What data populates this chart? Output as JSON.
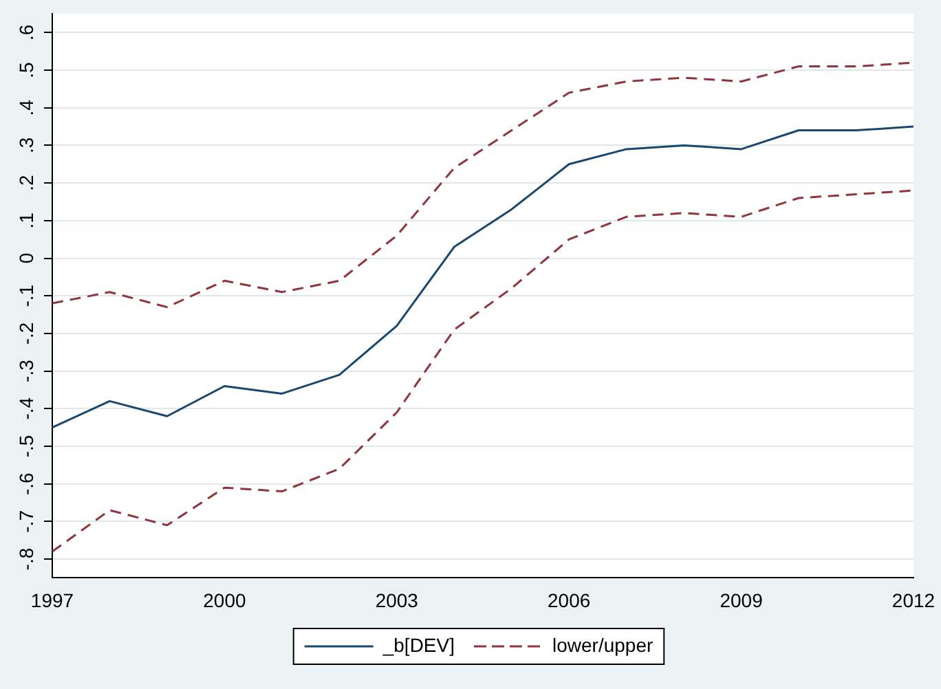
{
  "chart_data": {
    "type": "line",
    "x": [
      1997,
      1998,
      1999,
      2000,
      2001,
      2002,
      2003,
      2004,
      2005,
      2006,
      2007,
      2008,
      2009,
      2010,
      2011,
      2012
    ],
    "series": [
      {
        "name": "_b[DEV]",
        "color": "#1a476f",
        "line_style": "solid",
        "values": [
          -0.45,
          -0.38,
          -0.42,
          -0.34,
          -0.36,
          -0.31,
          -0.18,
          0.03,
          0.13,
          0.25,
          0.29,
          0.3,
          0.29,
          0.34,
          0.34,
          0.35
        ]
      },
      {
        "name": "lower/upper",
        "color": "#90353b",
        "line_style": "dashed",
        "values": [
          -0.78,
          -0.67,
          -0.71,
          -0.61,
          -0.62,
          -0.56,
          -0.41,
          -0.19,
          -0.08,
          0.05,
          0.11,
          0.12,
          0.11,
          0.16,
          0.17,
          0.18
        ]
      },
      {
        "color": "#90353b",
        "line_style": "dashed",
        "values": [
          -0.12,
          -0.09,
          -0.13,
          -0.06,
          -0.09,
          -0.06,
          0.06,
          0.24,
          0.34,
          0.44,
          0.47,
          0.48,
          0.47,
          0.51,
          0.51,
          0.52
        ]
      }
    ],
    "xlim": [
      1997,
      2012
    ],
    "xticks": [
      1997,
      2000,
      2003,
      2006,
      2009,
      2012
    ],
    "ylim": [
      -0.85,
      0.65
    ],
    "yticks": [
      {
        "value": -0.8,
        "label": "-.8"
      },
      {
        "value": -0.7,
        "label": "-.7"
      },
      {
        "value": -0.6,
        "label": "-.6"
      },
      {
        "value": -0.5,
        "label": "-.5"
      },
      {
        "value": -0.4,
        "label": "-.4"
      },
      {
        "value": -0.3,
        "label": "-.3"
      },
      {
        "value": -0.2,
        "label": "-.2"
      },
      {
        "value": -0.1,
        "label": "-.1"
      },
      {
        "value": 0,
        "label": "0"
      },
      {
        "value": 0.1,
        "label": ".1"
      },
      {
        "value": 0.2,
        "label": ".2"
      },
      {
        "value": 0.3,
        "label": ".3"
      },
      {
        "value": 0.4,
        "label": ".4"
      },
      {
        "value": 0.5,
        "label": ".5"
      },
      {
        "value": 0.6,
        "label": ".6"
      }
    ],
    "grid": "y",
    "legend": "bottom",
    "marker": "none"
  }
}
